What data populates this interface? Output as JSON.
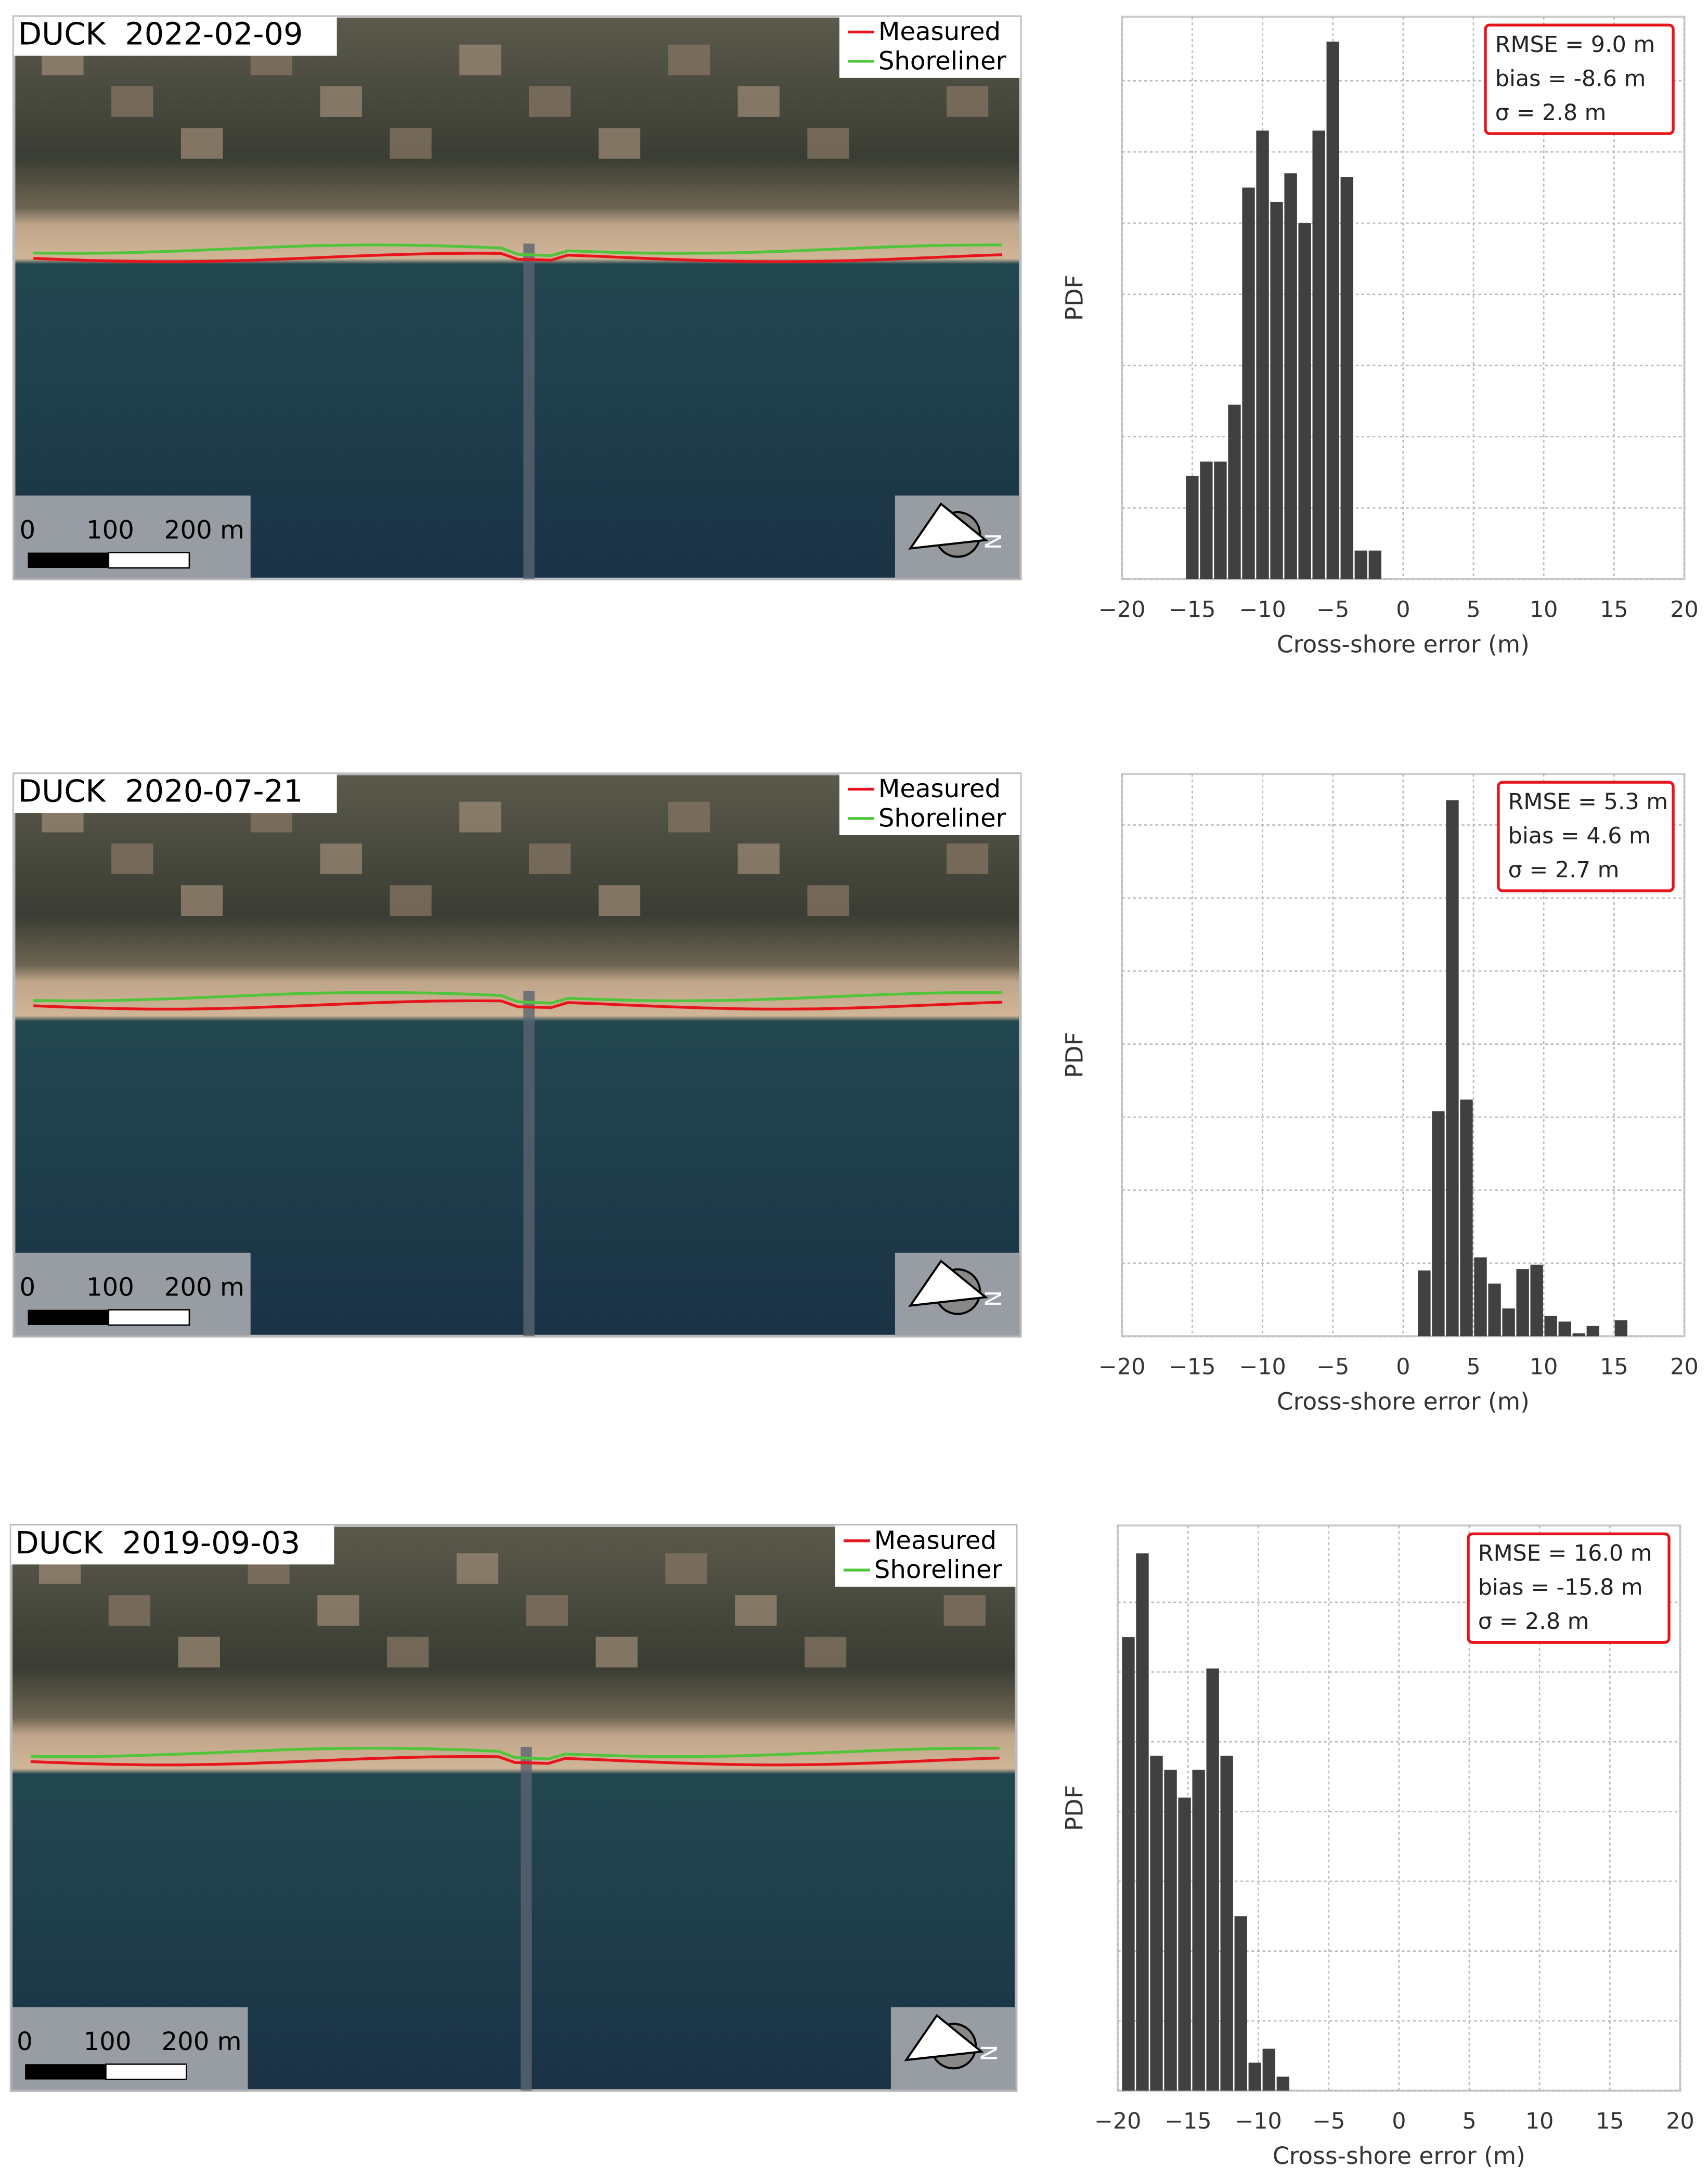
{
  "chart_data": [
    {
      "type": "histogram",
      "map": {
        "title": "DUCK  2022-02-09",
        "legend": [
          {
            "name": "Measured",
            "color": "#e8141c"
          },
          {
            "name": "Shoreliner",
            "color": "#4fc53a"
          }
        ],
        "scale_labels": [
          "0",
          "100",
          "200 m"
        ],
        "compass_label": "N"
      },
      "bins": [
        -15.5,
        -14.5,
        -13.5,
        -12.5,
        -11.5,
        -10.5,
        -9.5,
        -8.5,
        -7.5,
        -6.5,
        -5.5,
        -4.5,
        -3.5,
        -2.5,
        -1.5
      ],
      "values": [
        0.029,
        0.033,
        0.033,
        0.049,
        0.11,
        0.126,
        0.106,
        0.114,
        0.1,
        0.126,
        0.151,
        0.113,
        0.008,
        0.008
      ],
      "color": "#404040",
      "xlim": [
        -20,
        20
      ],
      "xticks": [
        {
          "value": -20,
          "label": "−20"
        },
        {
          "value": -15,
          "label": "−15"
        },
        {
          "value": -10,
          "label": "−10"
        },
        {
          "value": -5,
          "label": "−5"
        },
        0,
        5,
        10,
        15,
        20
      ],
      "ylim": [
        0,
        0.158
      ],
      "yticks": [
        0,
        0.02,
        0.04,
        0.06,
        0.08,
        0.1,
        0.12,
        0.14
      ],
      "xlabel": "Cross-shore error (m)",
      "ylabel": "PDF",
      "grid": true,
      "annotations": [
        "RMSE = 9.0 m",
        "bias = -8.6 m",
        "σ = 2.8 m"
      ]
    },
    {
      "type": "histogram",
      "map": {
        "title": "DUCK  2020-07-21",
        "legend": [
          {
            "name": "Measured",
            "color": "#e8141c"
          },
          {
            "name": "Shoreliner",
            "color": "#4fc53a"
          }
        ],
        "scale_labels": [
          "0",
          "100",
          "200 m"
        ],
        "compass_label": "N"
      },
      "bins": [
        1,
        2,
        3,
        4,
        5,
        6,
        7,
        8,
        9,
        10,
        11,
        12,
        13,
        14,
        15,
        16
      ],
      "values": [
        0.045,
        0.154,
        0.367,
        0.162,
        0.054,
        0.036,
        0.019,
        0.046,
        0.049,
        0.014,
        0.01,
        0.002,
        0.007,
        0,
        0.011
      ],
      "color": "#404040",
      "xlim": [
        -20,
        20
      ],
      "xticks": [
        {
          "value": -20,
          "label": "−20"
        },
        {
          "value": -15,
          "label": "−15"
        },
        {
          "value": -10,
          "label": "−10"
        },
        {
          "value": -5,
          "label": "−5"
        },
        0,
        5,
        10,
        15,
        20
      ],
      "ylim": [
        0,
        0.385
      ],
      "yticks": [
        0,
        0.05,
        0.1,
        0.15,
        0.2,
        0.25,
        0.3,
        0.35
      ],
      "xlabel": "Cross-shore error (m)",
      "ylabel": "PDF",
      "grid": true,
      "annotations": [
        "RMSE = 5.3 m",
        "bias = 4.6 m",
        "σ = 2.7 m"
      ]
    },
    {
      "type": "histogram",
      "map": {
        "title": "DUCK  2019-09-03",
        "legend": [
          {
            "name": "Measured",
            "color": "#e8141c"
          },
          {
            "name": "Shoreliner",
            "color": "#4fc53a"
          }
        ],
        "scale_labels": [
          "0",
          "100",
          "200 m"
        ],
        "compass_label": "N"
      },
      "bins": [
        -19.75,
        -18.75,
        -17.75,
        -16.75,
        -15.75,
        -14.75,
        -13.75,
        -12.75,
        -11.75,
        -10.75,
        -9.75,
        -8.75,
        -7.75
      ],
      "values": [
        0.13,
        0.154,
        0.096,
        0.092,
        0.084,
        0.092,
        0.121,
        0.096,
        0.05,
        0.008,
        0.012,
        0.004
      ],
      "color": "#404040",
      "xlim": [
        -20,
        20
      ],
      "xticks": [
        {
          "value": -20,
          "label": "−20"
        },
        {
          "value": -15,
          "label": "−15"
        },
        {
          "value": -10,
          "label": "−10"
        },
        {
          "value": -5,
          "label": "−5"
        },
        0,
        5,
        10,
        15,
        20
      ],
      "ylim": [
        0,
        0.162
      ],
      "yticks": [
        0,
        0.02,
        0.04,
        0.06,
        0.08,
        0.1,
        0.12,
        0.14
      ],
      "xlabel": "Cross-shore error (m)",
      "ylabel": "PDF",
      "grid": true,
      "annotations": [
        "RMSE = 16.0 m",
        "bias = -15.8 m",
        "σ = 2.8 m"
      ]
    }
  ]
}
